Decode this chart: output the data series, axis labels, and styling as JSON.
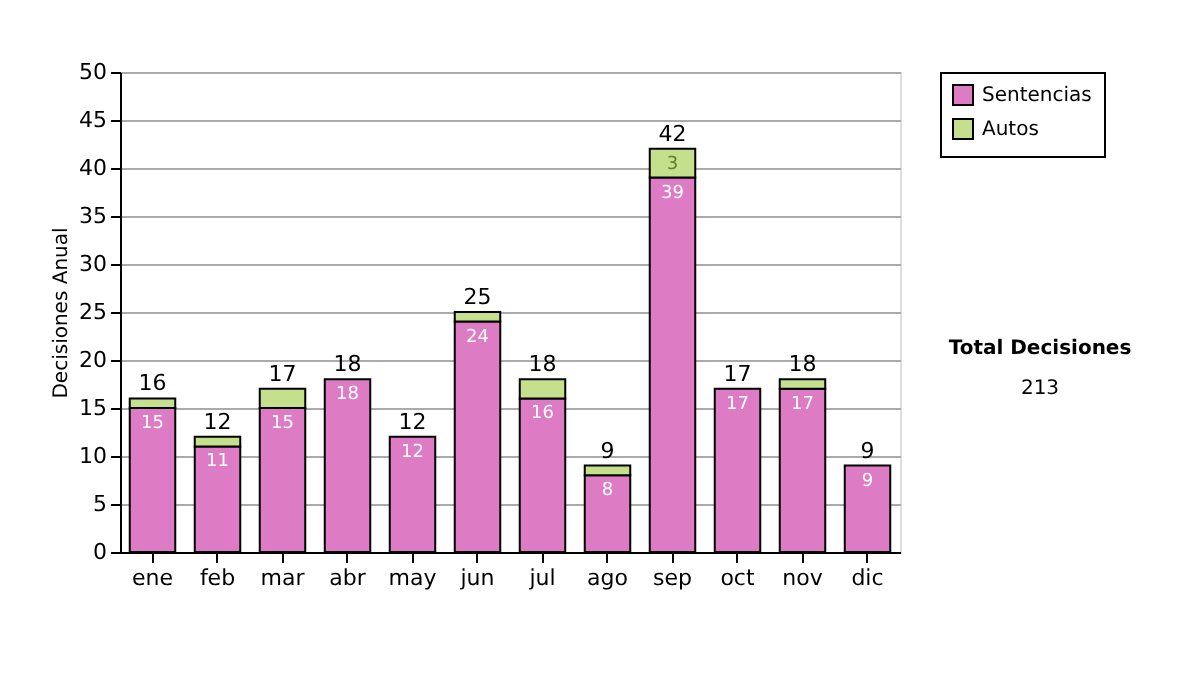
{
  "chart_data": {
    "type": "bar",
    "stacked": true,
    "ylabel": "Decisiones Anual",
    "categories": [
      "ene",
      "feb",
      "mar",
      "abr",
      "may",
      "jun",
      "jul",
      "ago",
      "sep",
      "oct",
      "nov",
      "dic"
    ],
    "series": [
      {
        "name": "Sentencias",
        "color": "#dd7cc4",
        "values": [
          15,
          11,
          15,
          18,
          12,
          24,
          16,
          8,
          39,
          17,
          17,
          9
        ],
        "value_labels": [
          "15",
          "11",
          "15",
          "18",
          "12",
          "24",
          "16",
          "8",
          "39",
          "17",
          "17",
          "9"
        ]
      },
      {
        "name": "Autos",
        "color": "#c4e08c",
        "values": [
          1,
          1,
          2,
          0,
          0,
          1,
          2,
          1,
          3,
          0,
          1,
          0
        ],
        "value_labels": [
          null,
          null,
          null,
          null,
          null,
          null,
          null,
          null,
          "3",
          null,
          null,
          null
        ]
      }
    ],
    "totals": [
      "16",
      "12",
      "17",
      "18",
      "12",
      "25",
      "18",
      "9",
      "42",
      "17",
      "18",
      "9"
    ],
    "ylim": [
      0,
      50
    ],
    "yticks": [
      0,
      5,
      10,
      15,
      20,
      25,
      30,
      35,
      40,
      45,
      50
    ],
    "grid": "y",
    "legend": "right",
    "annotations": [
      "Total Decisiones",
      "213"
    ]
  }
}
